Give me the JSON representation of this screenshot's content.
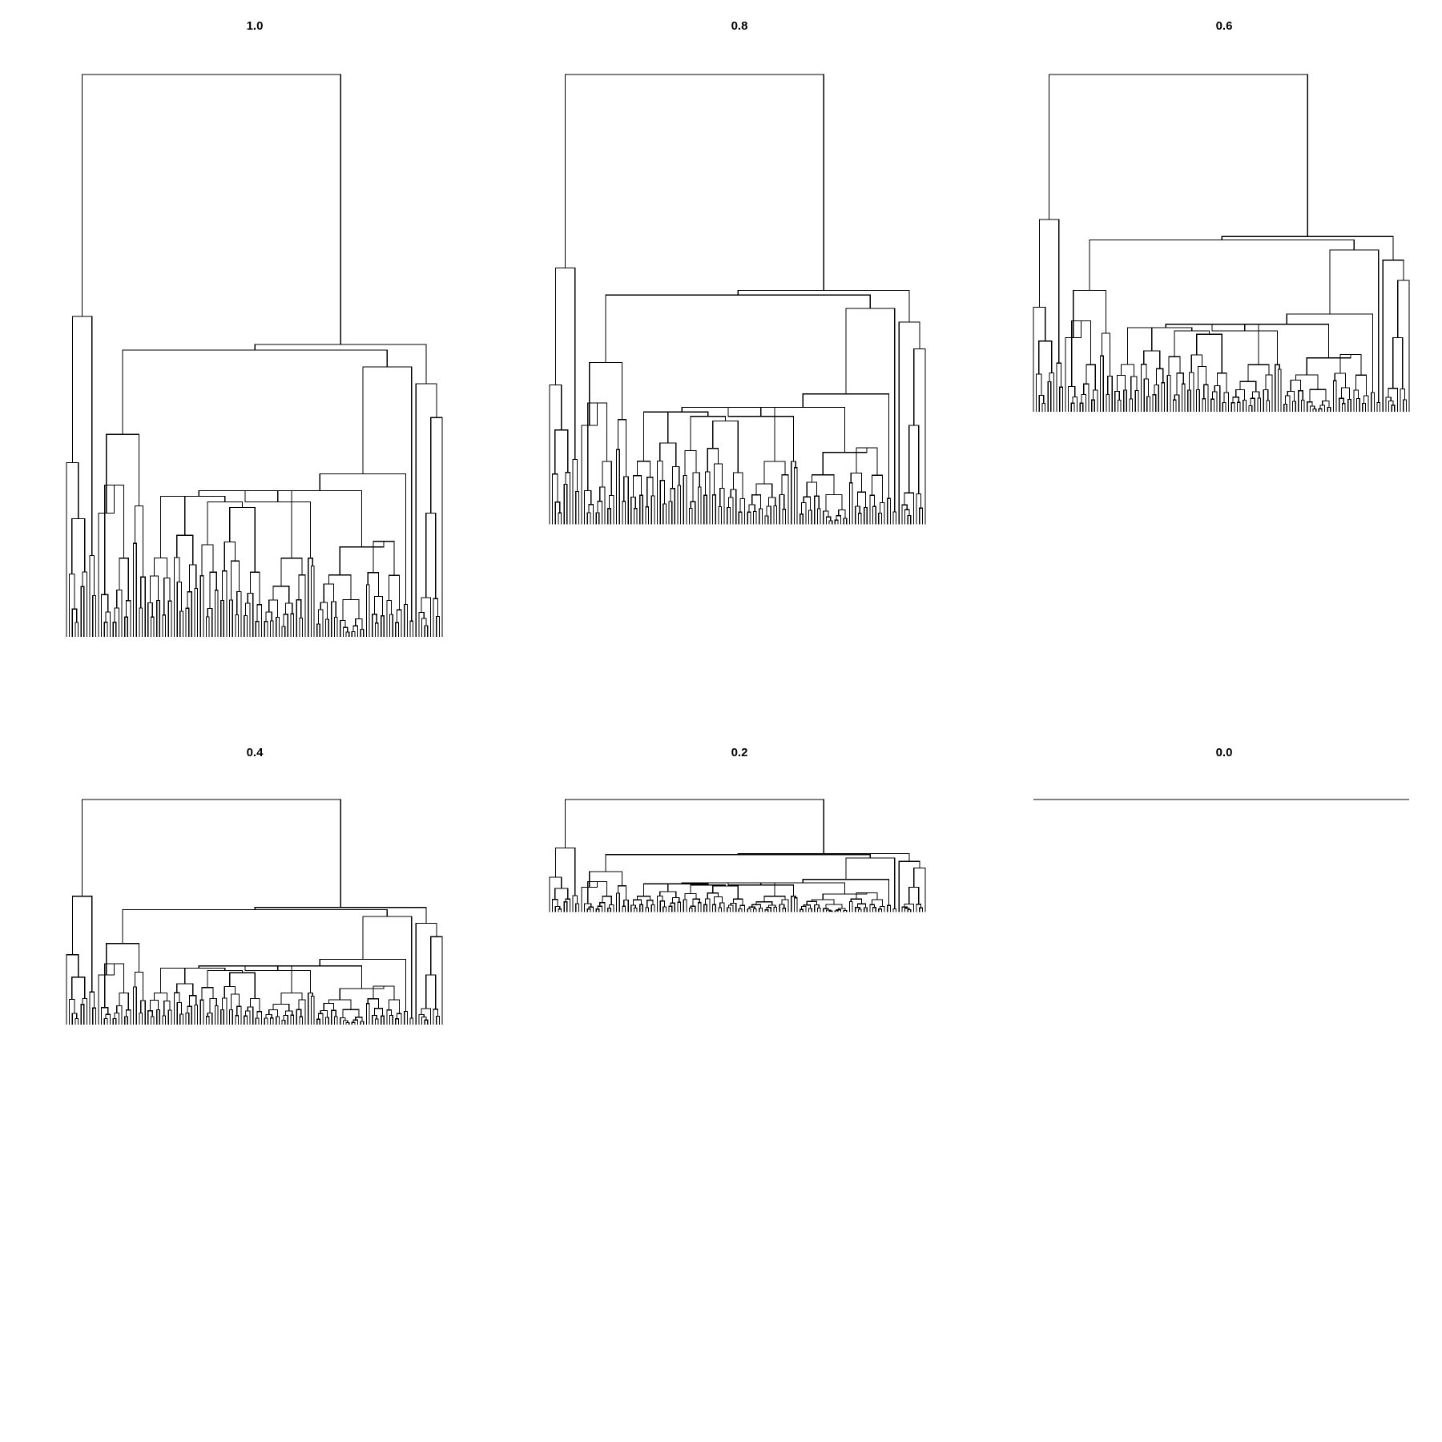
{
  "figure": {
    "background_color": "#ffffff",
    "line_color": "#000000",
    "panels": [
      {
        "title": "1.0"
      },
      {
        "title": "0.8"
      },
      {
        "title": "0.6"
      },
      {
        "title": "0.4"
      },
      {
        "title": "0.2"
      },
      {
        "title": "0.0"
      }
    ]
  }
}
